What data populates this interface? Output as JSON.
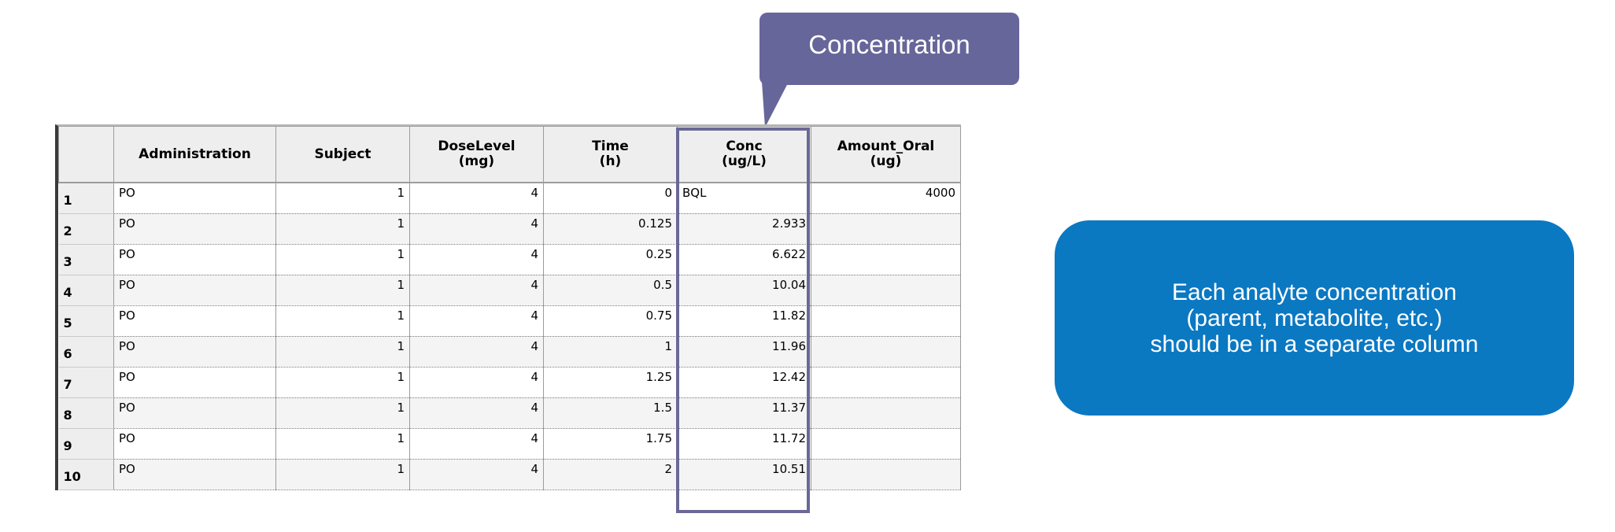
{
  "callout": {
    "text": "Concentration"
  },
  "note": {
    "text": "Each analyte concentration\n(parent, metabolite, etc.)\nshould be in a separate column"
  },
  "table": {
    "columns": [
      {
        "key": "rownum",
        "label": ""
      },
      {
        "key": "administration",
        "label": "Administration"
      },
      {
        "key": "subject",
        "label": "Subject"
      },
      {
        "key": "doselevel",
        "label": "DoseLevel\n(mg)"
      },
      {
        "key": "time",
        "label": "Time\n(h)"
      },
      {
        "key": "conc",
        "label": "Conc\n(ug/L)"
      },
      {
        "key": "amount_oral",
        "label": "Amount_Oral\n(ug)"
      }
    ],
    "rows": [
      {
        "rownum": "1",
        "administration": "PO",
        "subject": "1",
        "doselevel": "4",
        "time": "0",
        "conc": "BQL",
        "amount_oral": "4000"
      },
      {
        "rownum": "2",
        "administration": "PO",
        "subject": "1",
        "doselevel": "4",
        "time": "0.125",
        "conc": "2.933",
        "amount_oral": ""
      },
      {
        "rownum": "3",
        "administration": "PO",
        "subject": "1",
        "doselevel": "4",
        "time": "0.25",
        "conc": "6.622",
        "amount_oral": ""
      },
      {
        "rownum": "4",
        "administration": "PO",
        "subject": "1",
        "doselevel": "4",
        "time": "0.5",
        "conc": "10.04",
        "amount_oral": ""
      },
      {
        "rownum": "5",
        "administration": "PO",
        "subject": "1",
        "doselevel": "4",
        "time": "0.75",
        "conc": "11.82",
        "amount_oral": ""
      },
      {
        "rownum": "6",
        "administration": "PO",
        "subject": "1",
        "doselevel": "4",
        "time": "1",
        "conc": "11.96",
        "amount_oral": ""
      },
      {
        "rownum": "7",
        "administration": "PO",
        "subject": "1",
        "doselevel": "4",
        "time": "1.25",
        "conc": "12.42",
        "amount_oral": ""
      },
      {
        "rownum": "8",
        "administration": "PO",
        "subject": "1",
        "doselevel": "4",
        "time": "1.5",
        "conc": "11.37",
        "amount_oral": ""
      },
      {
        "rownum": "9",
        "administration": "PO",
        "subject": "1",
        "doselevel": "4",
        "time": "1.75",
        "conc": "11.72",
        "amount_oral": ""
      },
      {
        "rownum": "10",
        "administration": "PO",
        "subject": "1",
        "doselevel": "4",
        "time": "2",
        "conc": "10.51",
        "amount_oral": ""
      }
    ]
  },
  "colors": {
    "callout": "#67669a",
    "highlight": "#6a6896",
    "note": "#0b78c2"
  }
}
